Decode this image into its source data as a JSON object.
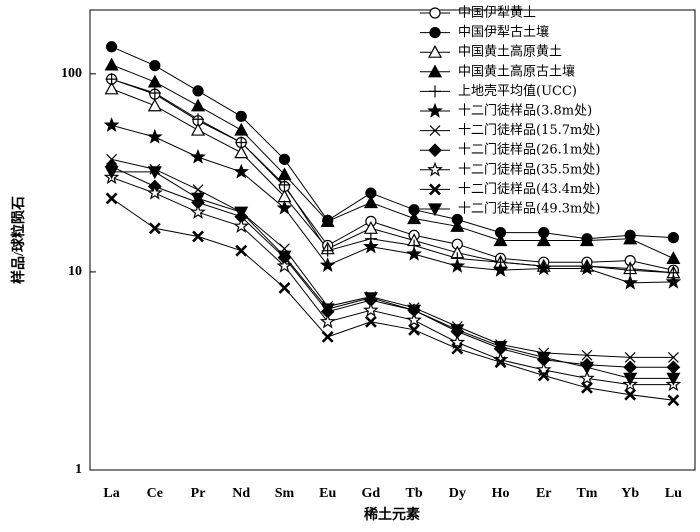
{
  "chart_data": {
    "type": "line",
    "y_label": "样品/球粒陨石",
    "x_label": "稀土元素",
    "categories": [
      "La",
      "Ce",
      "Pr",
      "Nd",
      "Sm",
      "Eu",
      "Gd",
      "Tb",
      "Dy",
      "Ho",
      "Er",
      "Tm",
      "Yb",
      "Lu"
    ],
    "log_scale": true,
    "ylim": [
      1,
      210
    ],
    "yticks": [
      1,
      10,
      100
    ],
    "legend": "upper right",
    "color": "#000000",
    "series": [
      {
        "name": "中国伊犁黄土",
        "marker": "circle-open",
        "values": [
          94,
          79,
          58,
          45,
          27,
          13.6,
          18,
          15.3,
          13.8,
          11.7,
          11.2,
          11.2,
          11.4,
          10.2
        ]
      },
      {
        "name": "中国伊犁古土壤",
        "marker": "circle-filled",
        "values": [
          137,
          110,
          82,
          61,
          37,
          18.2,
          25,
          20.6,
          18.4,
          15.8,
          15.8,
          14.7,
          15.3,
          14.9
        ]
      },
      {
        "name": "中国黄土高原黄土",
        "marker": "triangle-open",
        "values": [
          84,
          69,
          52,
          40,
          24,
          13.1,
          16.6,
          14.4,
          12.5,
          11.2,
          10.7,
          10.7,
          10.4,
          9.9
        ]
      },
      {
        "name": "中国黄土高原古土壤",
        "marker": "triangle-filled",
        "values": [
          111,
          91,
          69,
          52,
          31,
          18,
          22.4,
          18.6,
          17,
          14.4,
          14.4,
          14.4,
          14.7,
          11.7
        ]
      },
      {
        "name": "上地壳平均值(UCC)",
        "marker": "plus",
        "values": [
          94,
          80,
          59,
          45,
          27.5,
          12.8,
          14.7,
          13.6,
          11.7,
          11.2,
          10.7,
          10.7,
          10.2,
          9.9
        ]
      },
      {
        "name": "十二门徒样品(3.8m处)",
        "marker": "star-filled",
        "values": [
          55,
          48,
          38,
          32,
          21,
          10.8,
          13.4,
          12.3,
          10.7,
          10.2,
          10.4,
          10.4,
          8.8,
          8.9
        ]
      },
      {
        "name": "十二门徒样品(15.7m处)",
        "marker": "x",
        "values": [
          37,
          33,
          26,
          20,
          13.1,
          6.7,
          7.5,
          6.6,
          5.3,
          4.3,
          3.9,
          3.8,
          3.7,
          3.7
        ]
      },
      {
        "name": "十二门徒样品(26.1m处)",
        "marker": "diamond-filled",
        "values": [
          34,
          27,
          22.4,
          19,
          11.8,
          6.3,
          7.2,
          6.4,
          5,
          4.1,
          3.6,
          3.4,
          3.3,
          3.3
        ]
      },
      {
        "name": "十二门徒样品(35.5m处)",
        "marker": "star-open",
        "values": [
          30,
          25,
          20,
          17,
          10.7,
          5.6,
          6.4,
          5.7,
          4.4,
          3.6,
          3.2,
          2.9,
          2.7,
          2.7
        ]
      },
      {
        "name": "十二门徒样品(43.4m处)",
        "marker": "x-bold",
        "values": [
          23.5,
          16.6,
          15.1,
          12.8,
          8.3,
          4.7,
          5.6,
          5.1,
          4.1,
          3.5,
          3,
          2.6,
          2.4,
          2.25
        ]
      },
      {
        "name": "十二门徒样品(49.3m处)",
        "marker": "triangle-down-filled",
        "values": [
          32,
          32,
          23.5,
          20,
          12,
          6.5,
          7.4,
          6.4,
          5.1,
          4.2,
          3.7,
          3.3,
          2.9,
          2.9
        ]
      }
    ]
  }
}
